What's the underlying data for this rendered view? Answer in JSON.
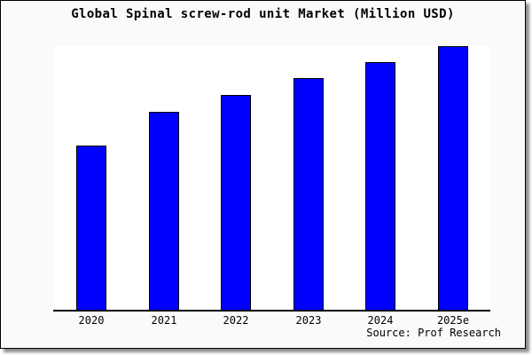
{
  "chart_data": {
    "type": "bar",
    "title": "Global Spinal screw-rod unit Market (Million USD)",
    "categories": [
      "2020",
      "2021",
      "2022",
      "2023",
      "2024",
      "2025e"
    ],
    "values": [
      62.5,
      75.3,
      81.6,
      88.0,
      94.0,
      100.0
    ],
    "xlabel": "",
    "ylabel": "",
    "ylim": [
      0,
      100.3
    ],
    "grid": false,
    "legend": false,
    "y_axis_visible": false,
    "bar_color": "#0000ff",
    "bar_border_color": "#000000",
    "axis_color": "#000000",
    "background_color": "#fafafa",
    "plot_background_color": "#ffffff",
    "source": "Source: Prof Research"
  }
}
